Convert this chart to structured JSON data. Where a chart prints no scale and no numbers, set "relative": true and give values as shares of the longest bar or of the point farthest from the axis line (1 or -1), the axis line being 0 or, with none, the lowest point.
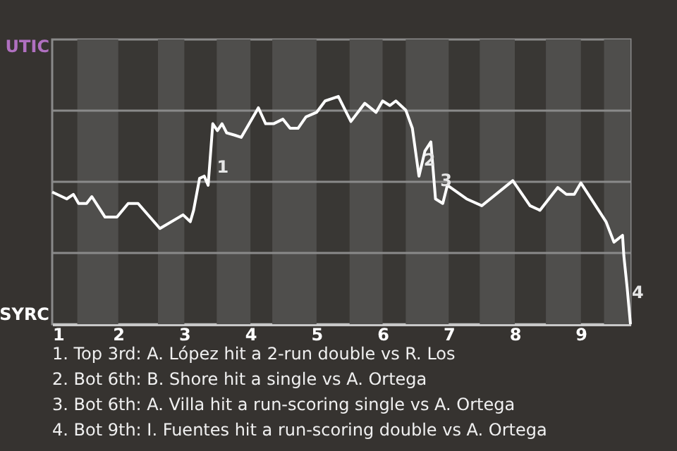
{
  "chart_data": {
    "type": "line",
    "relative": true,
    "x": [
      1,
      1.22,
      1.32,
      1.4,
      1.52,
      1.6,
      1.8,
      1.98,
      2.15,
      2.3,
      2.63,
      2.98,
      3.09,
      3.14,
      3.23,
      3.3,
      3.36,
      3.43,
      3.5,
      3.57,
      3.64,
      3.76,
      3.86,
      4.12,
      4.23,
      4.35,
      4.49,
      4.6,
      4.72,
      4.84,
      5,
      5.13,
      5.33,
      5.52,
      5.73,
      5.9,
      6,
      6.11,
      6.2,
      6.35,
      6.45,
      6.55,
      6.64,
      6.73,
      6.8,
      6.91,
      6.98,
      7.27,
      7.5,
      7.97,
      8.23,
      8.38,
      8.65,
      8.78,
      8.9,
      9,
      9.38,
      9.5,
      9.63,
      9.65,
      9.7,
      9.75
    ],
    "series": [
      {
        "color": "#ffffff",
        "values": [
          0.58,
          0.55,
          0.57,
          0.53,
          0.53,
          0.56,
          0.47,
          0.47,
          0.53,
          0.53,
          0.42,
          0.48,
          0.45,
          0.5,
          0.64,
          0.65,
          0.61,
          0.88,
          0.85,
          0.88,
          0.84,
          0.83,
          0.82,
          0.95,
          0.88,
          0.88,
          0.9,
          0.86,
          0.86,
          0.91,
          0.93,
          0.98,
          1,
          0.89,
          0.97,
          0.93,
          0.98,
          0.96,
          0.98,
          0.94,
          0.86,
          0.65,
          0.76,
          0.8,
          0.55,
          0.53,
          0.61,
          0.55,
          0.52,
          0.63,
          0.52,
          0.5,
          0.6,
          0.57,
          0.57,
          0.62,
          0.45,
          0.36,
          0.39,
          0.3,
          0.16,
          0
        ]
      }
    ],
    "xlim": [
      1,
      9.75
    ],
    "xticks": [
      1,
      2,
      3,
      4,
      5,
      6,
      7,
      8,
      9
    ],
    "grid": "y",
    "marker": "none",
    "line_style": "solid",
    "bands": [
      {
        "axis": "x",
        "from": 1.38,
        "to": 2,
        "color": "#4f4e4c"
      },
      {
        "axis": "x",
        "from": 2.6,
        "to": 3,
        "color": "#4f4e4c"
      },
      {
        "axis": "x",
        "from": 3.49,
        "to": 4,
        "color": "#4f4e4c"
      },
      {
        "axis": "x",
        "from": 4.33,
        "to": 5,
        "color": "#4f4e4c"
      },
      {
        "axis": "x",
        "from": 5.5,
        "to": 6,
        "color": "#4f4e4c"
      },
      {
        "axis": "x",
        "from": 6.35,
        "to": 7,
        "color": "#4f4e4c"
      },
      {
        "axis": "x",
        "from": 7.47,
        "to": 8,
        "color": "#4f4e4c"
      },
      {
        "axis": "x",
        "from": 8.47,
        "to": 9,
        "color": "#4f4e4c"
      },
      {
        "axis": "x",
        "from": 9.35,
        "to": 9.75,
        "color": "#4f4e4c"
      }
    ],
    "annotations": [
      "UTIC",
      "SYRC",
      {
        "text": "1",
        "x": 3.47,
        "y": 0.69
      },
      {
        "text": "2",
        "x": 6.6,
        "y": 0.72
      },
      {
        "text": "3",
        "x": 6.85,
        "y": 0.63
      },
      {
        "text": "4",
        "x": 9.75,
        "y": 0.14
      },
      "1. Top 3rd: A. López hit a 2-run double vs R. Los",
      "2. Bot 6th: B. Shore hit a single vs A. Ortega",
      "3. Bot 6th: A. Villa hit a run-scoring single vs A. Ortega",
      "4. Bot 9th: I. Fuentes hit a run-scoring double vs A. Ortega"
    ]
  }
}
